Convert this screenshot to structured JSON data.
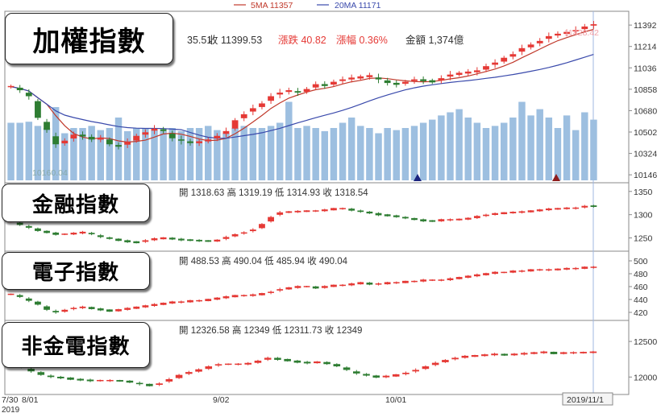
{
  "chart_data": [
    {
      "type": "candlestick",
      "title": "加權指數",
      "legend": [
        {
          "label": "5MA 11357",
          "color": "#c0392b"
        },
        {
          "label": "20MA 11171",
          "color": "#3949ab"
        }
      ],
      "info": {
        "open_tail": "35.51",
        "close_label": "收 11399.53",
        "change_label": "漲跌 40.82",
        "pct_label": "漲幅 0.36%",
        "volume_label": "金額 1,374億"
      },
      "high_marker": "11428.42",
      "low_marker": "10160.04",
      "yticks": [
        11392,
        11214,
        11036,
        10858,
        10680,
        10502,
        10324,
        10146
      ],
      "ylim": [
        10100,
        11480
      ],
      "closes": [
        10880,
        10850,
        10800,
        10620,
        10520,
        10400,
        10430,
        10480,
        10470,
        10440,
        10450,
        10400,
        10380,
        10420,
        10470,
        10500,
        10530,
        10510,
        10450,
        10430,
        10410,
        10420,
        10440,
        10470,
        10510,
        10600,
        10650,
        10700,
        10740,
        10800,
        10830,
        10850,
        10830,
        10860,
        10900,
        10890,
        10920,
        10940,
        10950,
        10960,
        10970,
        10940,
        10910,
        10900,
        10920,
        10940,
        10930,
        10920,
        10950,
        10980,
        10990,
        11000,
        11010,
        11050,
        11080,
        11120,
        11150,
        11200,
        11230,
        11260,
        11300,
        11320,
        11330,
        11350,
        11380,
        11399
      ],
      "volumes": [
        0.55,
        0.55,
        0.56,
        0.52,
        0.5,
        0.7,
        0.45,
        0.5,
        0.5,
        0.52,
        0.48,
        0.5,
        0.6,
        0.47,
        0.5,
        0.5,
        0.48,
        0.47,
        0.5,
        0.47,
        0.5,
        0.5,
        0.52,
        0.48,
        0.45,
        0.5,
        0.52,
        0.5,
        0.5,
        0.52,
        0.55,
        0.75,
        0.5,
        0.52,
        0.5,
        0.47,
        0.5,
        0.55,
        0.6,
        0.52,
        0.5,
        0.45,
        0.5,
        0.48,
        0.5,
        0.52,
        0.55,
        0.58,
        0.62,
        0.65,
        0.68,
        0.6,
        0.55,
        0.5,
        0.52,
        0.55,
        0.6,
        0.75,
        0.62,
        0.68,
        0.6,
        0.5,
        0.62,
        0.48,
        0.65,
        0.58
      ]
    },
    {
      "type": "candlestick",
      "title": "金融指數",
      "info_label": "開 1318.63 高 1319.19 低 1314.93 收 1318.54",
      "yticks": [
        1350,
        1300,
        1250
      ],
      "ylim": [
        1225,
        1360
      ],
      "closes": [
        1285,
        1278,
        1272,
        1265,
        1262,
        1258,
        1258,
        1260,
        1262,
        1258,
        1252,
        1248,
        1245,
        1242,
        1240,
        1245,
        1248,
        1250,
        1248,
        1246,
        1245,
        1244,
        1243,
        1245,
        1252,
        1258,
        1262,
        1268,
        1280,
        1295,
        1305,
        1306,
        1307,
        1308,
        1308,
        1310,
        1313,
        1313,
        1310,
        1306,
        1304,
        1300,
        1298,
        1296,
        1292,
        1290,
        1287,
        1286,
        1289,
        1289,
        1290,
        1292,
        1296,
        1300,
        1302,
        1304,
        1305,
        1306,
        1308,
        1310,
        1312,
        1313,
        1314,
        1314,
        1319,
        1318
      ]
    },
    {
      "type": "candlestick",
      "title": "電子指數",
      "info_label": "開 488.53 高 490.04 低 485.94 收 490.04",
      "yticks": [
        500,
        480,
        460,
        440,
        420
      ],
      "ylim": [
        410,
        510
      ],
      "closes": [
        448,
        444,
        438,
        432,
        424,
        420,
        424,
        427,
        428,
        426,
        424,
        422,
        424,
        426,
        428,
        430,
        432,
        434,
        436,
        436,
        438,
        438,
        440,
        442,
        444,
        446,
        446,
        447,
        449,
        452,
        456,
        458,
        460,
        460,
        458,
        460,
        462,
        462,
        464,
        466,
        464,
        464,
        466,
        466,
        468,
        468,
        470,
        470,
        470,
        472,
        474,
        476,
        478,
        480,
        482,
        482,
        484,
        484,
        486,
        486,
        486,
        487,
        488,
        488,
        490,
        490
      ]
    },
    {
      "type": "candlestick",
      "title": "非金電指數",
      "info_label": "開 12326.58 高 12349 低 12311.73 收 12349",
      "yticks": [
        12500,
        12000
      ],
      "ylim": [
        11800,
        12750
      ],
      "closes": [
        12200,
        12140,
        12080,
        12030,
        12000,
        11990,
        11970,
        11960,
        11950,
        11950,
        11950,
        11945,
        11930,
        11900,
        11880,
        11910,
        11970,
        12030,
        12070,
        12100,
        12150,
        12180,
        12180,
        12180,
        12190,
        12230,
        12270,
        12250,
        12230,
        12210,
        12200,
        12210,
        12190,
        12150,
        12100,
        12050,
        12020,
        12000,
        12010,
        12030,
        12060,
        12100,
        12150,
        12200,
        12240,
        12270,
        12290,
        12300,
        12310,
        12320,
        12310,
        12320,
        12330,
        12340,
        12350,
        12330,
        12340,
        12340,
        12345,
        12350
      ]
    }
  ],
  "x_axis": {
    "labels": [
      "7/30",
      "8/01",
      "9/02",
      "10/01",
      "2019/11/1"
    ],
    "year_label": "2019"
  }
}
